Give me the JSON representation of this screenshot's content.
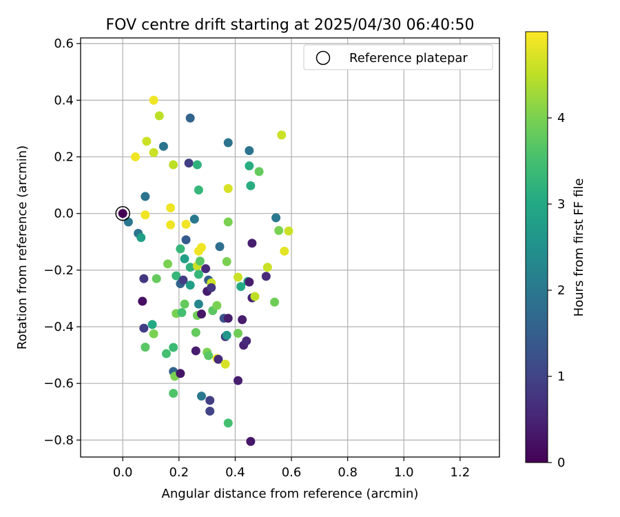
{
  "chart_data": {
    "type": "scatter",
    "title": "FOV centre drift starting at 2025/04/30 06:40:50",
    "xlabel": "Angular distance from reference (arcmin)",
    "ylabel": "Rotation from reference (arcmin)",
    "xlim": [
      -0.15,
      1.34
    ],
    "ylim": [
      -0.86,
      0.62
    ],
    "xticks": [
      "0.0",
      "0.2",
      "0.4",
      "0.6",
      "0.8",
      "1.0",
      "1.2"
    ],
    "xtick_values": [
      0.0,
      0.2,
      0.4,
      0.6,
      0.8,
      1.0,
      1.2
    ],
    "yticks": [
      "0.6",
      "0.4",
      "0.2",
      "0.0",
      "−0.2",
      "−0.4",
      "−0.6",
      "−0.8"
    ],
    "ytick_values": [
      0.6,
      0.4,
      0.2,
      0.0,
      -0.2,
      -0.4,
      -0.6,
      -0.8
    ],
    "grid": true,
    "legend": {
      "position": "top-right",
      "entries": [
        "Reference platepar"
      ]
    },
    "colorbar": {
      "label": "Hours from first FF file",
      "colormap": "viridis",
      "range": [
        0,
        5
      ],
      "ticks": [
        "0",
        "1",
        "2",
        "3",
        "4"
      ],
      "tick_values": [
        0,
        1,
        2,
        3,
        4
      ]
    },
    "reference_point": {
      "x": 0.0,
      "y": 0.0
    },
    "points": [
      {
        "x": 0.0,
        "y": 0.0,
        "c": 0.0
      },
      {
        "x": 0.02,
        "y": -0.03,
        "c": 2.0
      },
      {
        "x": 0.055,
        "y": -0.07,
        "c": 1.9
      },
      {
        "x": 0.065,
        "y": -0.085,
        "c": 2.8
      },
      {
        "x": 0.08,
        "y": 0.06,
        "c": 1.9
      },
      {
        "x": 0.045,
        "y": 0.2,
        "c": 4.9
      },
      {
        "x": 0.085,
        "y": 0.255,
        "c": 4.6
      },
      {
        "x": 0.11,
        "y": 0.4,
        "c": 4.9
      },
      {
        "x": 0.13,
        "y": 0.345,
        "c": 4.5
      },
      {
        "x": 0.145,
        "y": 0.237,
        "c": 1.9
      },
      {
        "x": 0.11,
        "y": 0.215,
        "c": 4.6
      },
      {
        "x": 0.08,
        "y": -0.005,
        "c": 4.9
      },
      {
        "x": 0.075,
        "y": -0.23,
        "c": 0.8
      },
      {
        "x": 0.07,
        "y": -0.31,
        "c": 0.2
      },
      {
        "x": 0.075,
        "y": -0.405,
        "c": 0.9
      },
      {
        "x": 0.08,
        "y": -0.472,
        "c": 3.7
      },
      {
        "x": 0.105,
        "y": -0.392,
        "c": 3.0
      },
      {
        "x": 0.11,
        "y": -0.425,
        "c": 4.0
      },
      {
        "x": 0.12,
        "y": -0.23,
        "c": 3.8
      },
      {
        "x": 0.155,
        "y": -0.495,
        "c": 3.5
      },
      {
        "x": 0.16,
        "y": -0.178,
        "c": 4.0
      },
      {
        "x": 0.17,
        "y": 0.02,
        "c": 4.9
      },
      {
        "x": 0.17,
        "y": -0.04,
        "c": 4.9
      },
      {
        "x": 0.18,
        "y": 0.172,
        "c": 4.5
      },
      {
        "x": 0.18,
        "y": -0.473,
        "c": 3.4
      },
      {
        "x": 0.18,
        "y": -0.558,
        "c": 1.6
      },
      {
        "x": 0.185,
        "y": -0.575,
        "c": 4.0
      },
      {
        "x": 0.18,
        "y": -0.635,
        "c": 3.6
      },
      {
        "x": 0.19,
        "y": -0.22,
        "c": 3.3
      },
      {
        "x": 0.19,
        "y": -0.353,
        "c": 4.0
      },
      {
        "x": 0.205,
        "y": -0.565,
        "c": 0.3
      },
      {
        "x": 0.205,
        "y": -0.125,
        "c": 3.3
      },
      {
        "x": 0.205,
        "y": -0.248,
        "c": 1.6
      },
      {
        "x": 0.21,
        "y": -0.35,
        "c": 3.5
      },
      {
        "x": 0.215,
        "y": -0.235,
        "c": 0.9
      },
      {
        "x": 0.22,
        "y": -0.16,
        "c": 2.8
      },
      {
        "x": 0.22,
        "y": -0.32,
        "c": 3.8
      },
      {
        "x": 0.225,
        "y": -0.093,
        "c": 1.4
      },
      {
        "x": 0.225,
        "y": -0.038,
        "c": 4.9
      },
      {
        "x": 0.235,
        "y": 0.178,
        "c": 0.9
      },
      {
        "x": 0.24,
        "y": 0.337,
        "c": 1.6
      },
      {
        "x": 0.24,
        "y": -0.19,
        "c": 3.2
      },
      {
        "x": 0.24,
        "y": -0.253,
        "c": 2.8
      },
      {
        "x": 0.255,
        "y": -0.02,
        "c": 2.0
      },
      {
        "x": 0.26,
        "y": -0.42,
        "c": 3.8
      },
      {
        "x": 0.26,
        "y": -0.485,
        "c": 0.4
      },
      {
        "x": 0.265,
        "y": 0.172,
        "c": 3.2
      },
      {
        "x": 0.265,
        "y": -0.185,
        "c": 4.6
      },
      {
        "x": 0.265,
        "y": -0.36,
        "c": 3.9
      },
      {
        "x": 0.27,
        "y": 0.083,
        "c": 3.3
      },
      {
        "x": 0.27,
        "y": -0.133,
        "c": 4.9
      },
      {
        "x": 0.27,
        "y": -0.215,
        "c": 3.3
      },
      {
        "x": 0.27,
        "y": -0.32,
        "c": 2.3
      },
      {
        "x": 0.275,
        "y": -0.168,
        "c": 3.7
      },
      {
        "x": 0.28,
        "y": -0.12,
        "c": 4.9
      },
      {
        "x": 0.28,
        "y": -0.355,
        "c": 0.3
      },
      {
        "x": 0.28,
        "y": -0.645,
        "c": 2.0
      },
      {
        "x": 0.295,
        "y": -0.195,
        "c": 0.6
      },
      {
        "x": 0.3,
        "y": -0.275,
        "c": 0.4
      },
      {
        "x": 0.3,
        "y": -0.49,
        "c": 4.0
      },
      {
        "x": 0.305,
        "y": -0.235,
        "c": 1.5
      },
      {
        "x": 0.305,
        "y": -0.502,
        "c": 3.7
      },
      {
        "x": 0.31,
        "y": -0.66,
        "c": 0.9
      },
      {
        "x": 0.31,
        "y": -0.698,
        "c": 1.0
      },
      {
        "x": 0.315,
        "y": -0.245,
        "c": 4.6
      },
      {
        "x": 0.315,
        "y": -0.262,
        "c": 0.8
      },
      {
        "x": 0.32,
        "y": -0.343,
        "c": 3.7
      },
      {
        "x": 0.335,
        "y": -0.512,
        "c": 4.9
      },
      {
        "x": 0.335,
        "y": -0.325,
        "c": 4.0
      },
      {
        "x": 0.34,
        "y": -0.515,
        "c": 0.6
      },
      {
        "x": 0.345,
        "y": -0.117,
        "c": 1.8
      },
      {
        "x": 0.36,
        "y": -0.37,
        "c": 1.3
      },
      {
        "x": 0.365,
        "y": -0.435,
        "c": 0.8
      },
      {
        "x": 0.365,
        "y": -0.532,
        "c": 4.7
      },
      {
        "x": 0.37,
        "y": -0.17,
        "c": 4.0
      },
      {
        "x": 0.37,
        "y": -0.43,
        "c": 2.6
      },
      {
        "x": 0.375,
        "y": 0.25,
        "c": 1.9
      },
      {
        "x": 0.375,
        "y": 0.088,
        "c": 4.7
      },
      {
        "x": 0.375,
        "y": -0.03,
        "c": 4.0
      },
      {
        "x": 0.375,
        "y": -0.37,
        "c": 0.4
      },
      {
        "x": 0.375,
        "y": -0.74,
        "c": 3.5
      },
      {
        "x": 0.41,
        "y": -0.59,
        "c": 0.4
      },
      {
        "x": 0.41,
        "y": -0.225,
        "c": 4.6
      },
      {
        "x": 0.41,
        "y": -0.423,
        "c": 3.9
      },
      {
        "x": 0.42,
        "y": -0.258,
        "c": 3.0
      },
      {
        "x": 0.425,
        "y": -0.375,
        "c": 0.4
      },
      {
        "x": 0.43,
        "y": -0.465,
        "c": 0.5
      },
      {
        "x": 0.44,
        "y": -0.45,
        "c": 0.6
      },
      {
        "x": 0.445,
        "y": -0.24,
        "c": 2.9
      },
      {
        "x": 0.45,
        "y": -0.242,
        "c": 0.4
      },
      {
        "x": 0.45,
        "y": 0.168,
        "c": 3.1
      },
      {
        "x": 0.45,
        "y": 0.222,
        "c": 1.9
      },
      {
        "x": 0.455,
        "y": 0.098,
        "c": 3.1
      },
      {
        "x": 0.455,
        "y": -0.805,
        "c": 0.3
      },
      {
        "x": 0.46,
        "y": -0.105,
        "c": 0.4
      },
      {
        "x": 0.46,
        "y": -0.298,
        "c": 0.5
      },
      {
        "x": 0.47,
        "y": -0.293,
        "c": 4.5
      },
      {
        "x": 0.485,
        "y": 0.148,
        "c": 3.8
      },
      {
        "x": 0.51,
        "y": -0.222,
        "c": 0.6
      },
      {
        "x": 0.515,
        "y": -0.19,
        "c": 4.6
      },
      {
        "x": 0.54,
        "y": -0.313,
        "c": 3.9
      },
      {
        "x": 0.545,
        "y": -0.015,
        "c": 2.0
      },
      {
        "x": 0.555,
        "y": -0.06,
        "c": 4.0
      },
      {
        "x": 0.565,
        "y": 0.277,
        "c": 4.6
      },
      {
        "x": 0.575,
        "y": -0.133,
        "c": 4.8
      },
      {
        "x": 0.59,
        "y": -0.062,
        "c": 4.6
      }
    ]
  }
}
